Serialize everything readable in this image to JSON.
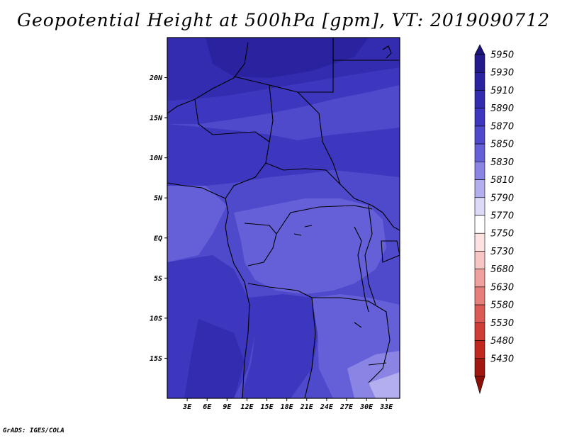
{
  "title": "Geopotential Height at 500hPa [gpm], VT: 2019090712",
  "credit": "GrADS: IGES/COLA",
  "map": {
    "lon_range": [
      0,
      35
    ],
    "lat_range": [
      -20,
      25
    ],
    "lat_ticks": [
      {
        "value": 20,
        "label": "20N"
      },
      {
        "value": 15,
        "label": "15N"
      },
      {
        "value": 10,
        "label": "10N"
      },
      {
        "value": 5,
        "label": "5N"
      },
      {
        "value": 0,
        "label": "EQ"
      },
      {
        "value": -5,
        "label": "5S"
      },
      {
        "value": -10,
        "label": "10S"
      },
      {
        "value": -15,
        "label": "15S"
      }
    ],
    "lon_ticks": [
      {
        "value": 3,
        "label": "3E"
      },
      {
        "value": 6,
        "label": "6E"
      },
      {
        "value": 9,
        "label": "9E"
      },
      {
        "value": 12,
        "label": "12E"
      },
      {
        "value": 15,
        "label": "15E"
      },
      {
        "value": 18,
        "label": "18E"
      },
      {
        "value": 21,
        "label": "21E"
      },
      {
        "value": 24,
        "label": "24E"
      },
      {
        "value": 27,
        "label": "27E"
      },
      {
        "value": 30,
        "label": "30E"
      },
      {
        "value": 33,
        "label": "33E"
      }
    ]
  },
  "colorbar": {
    "levels": [
      {
        "label": "5950",
        "color": "#231a8c"
      },
      {
        "label": "5930",
        "color": "#2b22a0"
      },
      {
        "label": "5910",
        "color": "#332bb0"
      },
      {
        "label": "5890",
        "color": "#3d36be"
      },
      {
        "label": "5870",
        "color": "#4f49cb"
      },
      {
        "label": "5850",
        "color": "#6660d8"
      },
      {
        "label": "5830",
        "color": "#8a84e4"
      },
      {
        "label": "5810",
        "color": "#b3afef"
      },
      {
        "label": "5790",
        "color": "#dddaf8"
      },
      {
        "label": "5770",
        "color": "#ffffff"
      },
      {
        "label": "5750",
        "color": "#fde2e2"
      },
      {
        "label": "5730",
        "color": "#f7c6c4"
      },
      {
        "label": "5680",
        "color": "#f0a19e"
      },
      {
        "label": "5630",
        "color": "#e67e7a"
      },
      {
        "label": "5580",
        "color": "#dc5a55"
      },
      {
        "label": "5530",
        "color": "#d03c36"
      },
      {
        "label": "5480",
        "color": "#c02820"
      },
      {
        "label": "5430",
        "color": "#a01810"
      }
    ],
    "top_color": "#1c1478",
    "bottom_color": "#8c1008"
  }
}
